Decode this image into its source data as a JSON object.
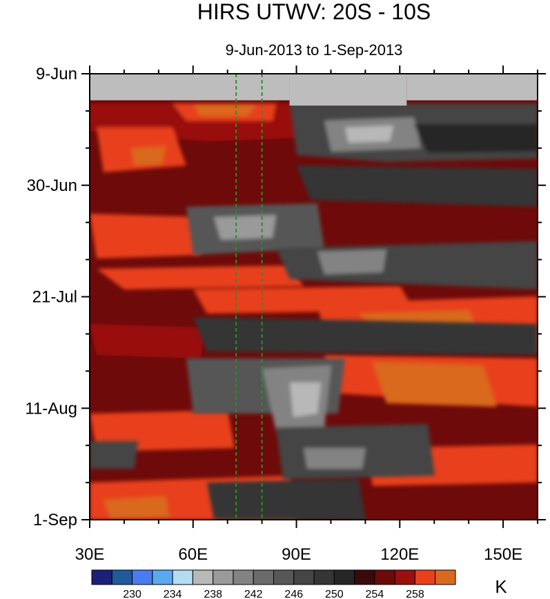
{
  "chart_data": {
    "type": "heatmap",
    "title": "HIRS UTWV: 20S - 10S",
    "subtitle": "9-Jun-2013 to 1-Sep-2013",
    "x_axis": {
      "range": [
        30,
        160
      ],
      "ticks": [
        30,
        60,
        90,
        120,
        150
      ],
      "tick_labels": [
        "30E",
        "60E",
        "90E",
        "120E",
        "150E"
      ]
    },
    "y_axis": {
      "range_days": [
        0,
        84
      ],
      "ticks_days": [
        0,
        21,
        42,
        63,
        84
      ],
      "tick_labels": [
        "9-Jun",
        "30-Jun",
        "21-Jul",
        "11-Aug",
        "1-Sep"
      ]
    },
    "reference_lines_lon": [
      72.5,
      80
    ],
    "missing_data": [
      {
        "lon": [
          30,
          88
        ],
        "days": [
          0,
          5
        ]
      },
      {
        "lon": [
          88,
          122
        ],
        "days": [
          0,
          6
        ]
      },
      {
        "lon": [
          122,
          160
        ],
        "days": [
          0,
          5
        ]
      }
    ],
    "colorbar": {
      "levels": [
        228,
        230,
        232,
        234,
        236,
        238,
        240,
        242,
        244,
        246,
        248,
        250,
        252,
        254,
        256,
        258,
        260
      ],
      "labels": [
        "230",
        "234",
        "238",
        "242",
        "246",
        "250",
        "254",
        "258"
      ],
      "colors": [
        "#1c1f7a",
        "#1f5a9c",
        "#4b7bf0",
        "#5aa8f0",
        "#b4dcf0",
        "#b8b8b8",
        "#9a9a9a",
        "#838383",
        "#6b6b6b",
        "#575757",
        "#454545",
        "#353535",
        "#262626",
        "#3a0a0a",
        "#6e0a0a",
        "#9a100c",
        "#e8401c",
        "#d9691f"
      ],
      "unit": "K"
    }
  }
}
